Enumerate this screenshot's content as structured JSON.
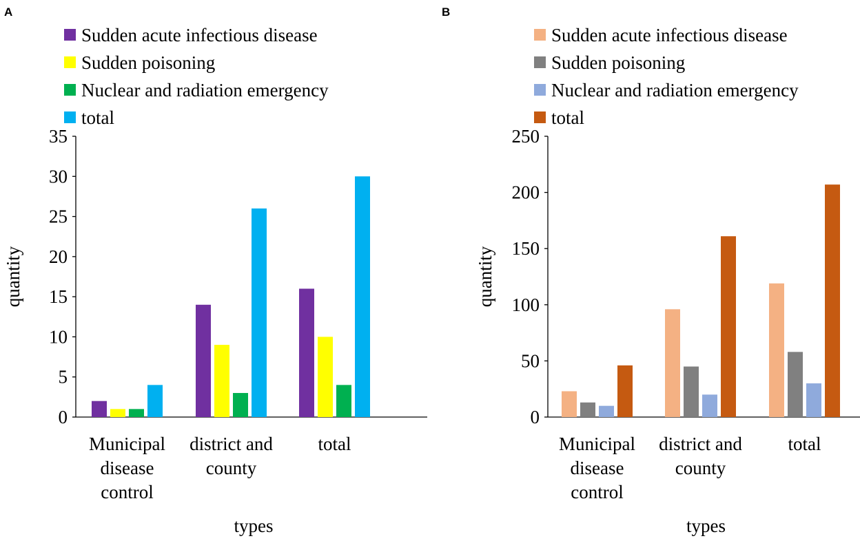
{
  "chart_data": [
    {
      "panel_label": "A",
      "type": "bar",
      "categories": [
        [
          "Municipal",
          "disease",
          "control"
        ],
        [
          "district and",
          "county"
        ],
        [
          "total"
        ]
      ],
      "series": [
        {
          "name": "Sudden acute infectious disease",
          "color": "#7030A0",
          "values": [
            2,
            14,
            16
          ]
        },
        {
          "name": "Sudden poisoning",
          "color": "#FFFF00",
          "values": [
            1,
            9,
            10
          ]
        },
        {
          "name": "Nuclear and radiation emergency",
          "color": "#00B050",
          "values": [
            1,
            3,
            4
          ]
        },
        {
          "name": "total",
          "color": "#00B0F0",
          "values": [
            4,
            26,
            30
          ]
        }
      ],
      "xlabel": "types",
      "ylabel": "quantity",
      "ylim": [
        0,
        35
      ],
      "yticks": [
        "0",
        "5",
        "10",
        "15",
        "20",
        "25",
        "30",
        "35"
      ],
      "legend_position": "top"
    },
    {
      "panel_label": "B",
      "type": "bar",
      "categories": [
        [
          "Municipal",
          "disease",
          "control"
        ],
        [
          "district and",
          "county"
        ],
        [
          "total"
        ]
      ],
      "series": [
        {
          "name": "Sudden acute infectious disease",
          "color": "#F4B183",
          "values": [
            23,
            96,
            119
          ]
        },
        {
          "name": "Sudden poisoning",
          "color": "#808080",
          "values": [
            13,
            45,
            58
          ]
        },
        {
          "name": "Nuclear and radiation emergency",
          "color": "#8FAADC",
          "values": [
            10,
            20,
            30
          ]
        },
        {
          "name": "total",
          "color": "#C55A11",
          "values": [
            46,
            161,
            207
          ]
        }
      ],
      "xlabel": "types",
      "ylabel": "quantity",
      "ylim": [
        0,
        250
      ],
      "yticks": [
        "0",
        "50",
        "100",
        "150",
        "200",
        "250"
      ],
      "legend_position": "top"
    }
  ]
}
